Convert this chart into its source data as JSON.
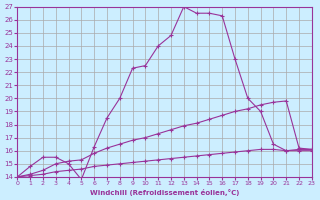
{
  "xlabel": "Windchill (Refroidissement éolien,°C)",
  "bg_color": "#cceeff",
  "line_color": "#993399",
  "grid_color": "#aaaaaa",
  "xlim": [
    0,
    23
  ],
  "ylim": [
    14,
    27
  ],
  "xticks": [
    0,
    1,
    2,
    3,
    4,
    5,
    6,
    7,
    8,
    9,
    10,
    11,
    12,
    13,
    14,
    15,
    16,
    17,
    18,
    19,
    20,
    21,
    22,
    23
  ],
  "yticks": [
    14,
    15,
    16,
    17,
    18,
    19,
    20,
    21,
    22,
    23,
    24,
    25,
    26,
    27
  ],
  "line1_x": [
    0,
    1,
    2,
    3,
    4,
    5,
    6,
    7,
    8,
    9,
    10,
    11,
    12,
    13,
    14,
    15,
    16,
    17,
    18,
    19,
    20,
    21,
    22,
    23
  ],
  "line1_y": [
    14,
    14.8,
    15.5,
    15.5,
    15,
    13.8,
    16.3,
    18.5,
    20,
    22.3,
    22.5,
    24,
    24.8,
    27,
    26.5,
    26.5,
    26.3,
    23,
    20,
    19,
    16.5,
    16,
    16.1,
    16.1
  ],
  "line2_x": [
    0,
    1,
    2,
    3,
    4,
    5,
    6,
    7,
    8,
    9,
    10,
    11,
    12,
    13,
    14,
    15,
    16,
    17,
    18,
    19,
    20,
    21,
    22,
    23
  ],
  "line2_y": [
    14,
    14.2,
    14.5,
    15,
    15.2,
    15.3,
    15.8,
    16.2,
    16.5,
    16.8,
    17,
    17.3,
    17.6,
    17.9,
    18.1,
    18.4,
    18.7,
    19,
    19.2,
    19.5,
    19.7,
    19.8,
    16.2,
    16.1
  ],
  "line3_x": [
    0,
    1,
    2,
    3,
    4,
    5,
    6,
    7,
    8,
    9,
    10,
    11,
    12,
    13,
    14,
    15,
    16,
    17,
    18,
    19,
    20,
    21,
    22,
    23
  ],
  "line3_y": [
    14,
    14.1,
    14.2,
    14.4,
    14.5,
    14.6,
    14.8,
    14.9,
    15.0,
    15.1,
    15.2,
    15.3,
    15.4,
    15.5,
    15.6,
    15.7,
    15.8,
    15.9,
    16.0,
    16.1,
    16.1,
    16.0,
    16.0,
    16.0
  ]
}
